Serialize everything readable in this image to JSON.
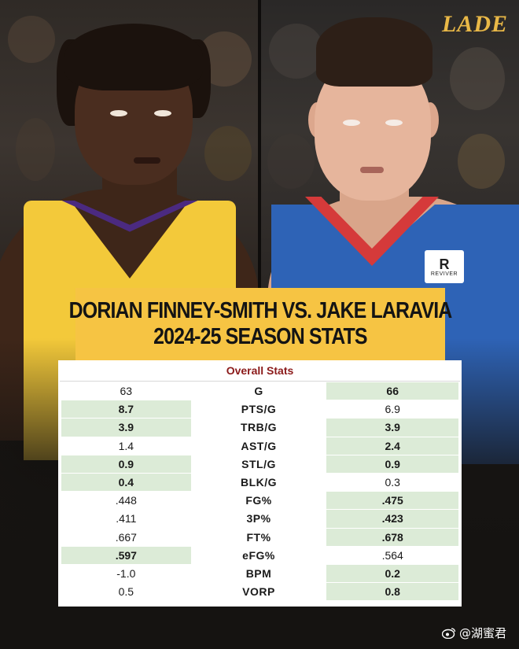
{
  "brand": {
    "logo_text": "LADE",
    "logo_color": "#e9b847"
  },
  "title": {
    "line1": "DORIAN FINNEY-SMITH VS. JAKE LARAVIA",
    "line2": "2024-25 SEASON STATS",
    "banner_color": "#f6c443"
  },
  "players": {
    "left": {
      "name": "Dorian Finney-Smith",
      "jersey_color": "#f3c93a"
    },
    "right": {
      "name": "Jake LaRavia",
      "jersey_color": "#2e63b6",
      "sponsor_letter": "R",
      "sponsor_text": "REVIVER"
    }
  },
  "stats": {
    "header": "Overall Stats",
    "header_color": "#8b1a1a",
    "highlight_color": "#dcebd7",
    "rows": [
      {
        "stat": "G",
        "left": "63",
        "right": "66",
        "winner": "right"
      },
      {
        "stat": "PTS/G",
        "left": "8.7",
        "right": "6.9",
        "winner": "left"
      },
      {
        "stat": "TRB/G",
        "left": "3.9",
        "right": "3.9",
        "winner": "both"
      },
      {
        "stat": "AST/G",
        "left": "1.4",
        "right": "2.4",
        "winner": "right"
      },
      {
        "stat": "STL/G",
        "left": "0.9",
        "right": "0.9",
        "winner": "both"
      },
      {
        "stat": "BLK/G",
        "left": "0.4",
        "right": "0.3",
        "winner": "left"
      },
      {
        "stat": "FG%",
        "left": ".448",
        "right": ".475",
        "winner": "right"
      },
      {
        "stat": "3P%",
        "left": ".411",
        "right": ".423",
        "winner": "right"
      },
      {
        "stat": "FT%",
        "left": ".667",
        "right": ".678",
        "winner": "right"
      },
      {
        "stat": "eFG%",
        "left": ".597",
        "right": ".564",
        "winner": "left"
      },
      {
        "stat": "BPM",
        "left": "-1.0",
        "right": "0.2",
        "winner": "right"
      },
      {
        "stat": "VORP",
        "left": "0.5",
        "right": "0.8",
        "winner": "right"
      }
    ]
  },
  "watermark": {
    "icon": "weibo-icon",
    "text": "@湖蜜君"
  }
}
